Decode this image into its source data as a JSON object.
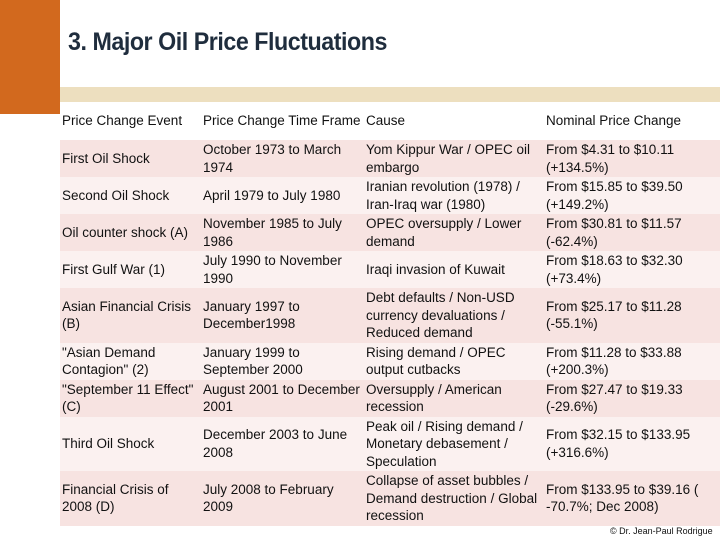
{
  "title": "3. Major Oil Price Fluctuations",
  "table": {
    "headers": [
      "Price Change Event",
      "Price Change Time Frame",
      "Cause",
      "Nominal Price Change"
    ],
    "rows": [
      [
        "First Oil Shock",
        "October 1973 to March 1974",
        "Yom Kippur War / OPEC oil embargo",
        "From $4.31 to $10.11 (+134.5%)"
      ],
      [
        "Second Oil Shock",
        "April 1979 to July 1980",
        "Iranian revolution (1978) / Iran-Iraq war (1980)",
        "From $15.85 to $39.50 (+149.2%)"
      ],
      [
        "Oil counter shock (A)",
        "November 1985 to July 1986",
        "OPEC oversupply / Lower demand",
        "From $30.81 to $11.57 (-62.4%)"
      ],
      [
        "First Gulf War (1)",
        "July 1990 to November 1990",
        "Iraqi invasion of Kuwait",
        "From $18.63 to $32.30 (+73.4%)"
      ],
      [
        "Asian Financial Crisis (B)",
        "January 1997 to December1998",
        "Debt defaults / Non-USD currency devaluations / Reduced demand",
        "From $25.17 to $11.28 (-55.1%)"
      ],
      [
        "\"Asian Demand Contagion\" (2)",
        "January 1999 to September 2000",
        "Rising demand / OPEC output cutbacks",
        "From $11.28 to $33.88 (+200.3%)"
      ],
      [
        "\"September 11 Effect\" (C)",
        "August 2001 to December 2001",
        "Oversupply / American recession",
        "From $27.47 to $19.33 (-29.6%)"
      ],
      [
        "Third Oil Shock",
        "December 2003 to June 2008",
        "Peak oil / Rising demand / Monetary debasement / Speculation",
        "From $32.15 to $133.95 (+316.6%)"
      ],
      [
        "Financial Crisis of 2008 (D)",
        "July 2008 to February 2009",
        "Collapse of asset bubbles / Demand destruction / Global recession",
        "From $133.95 to $39.16 ( -70.7%; Dec 2008)"
      ]
    ]
  },
  "credit": "© Dr. Jean-Paul Rodrigue"
}
